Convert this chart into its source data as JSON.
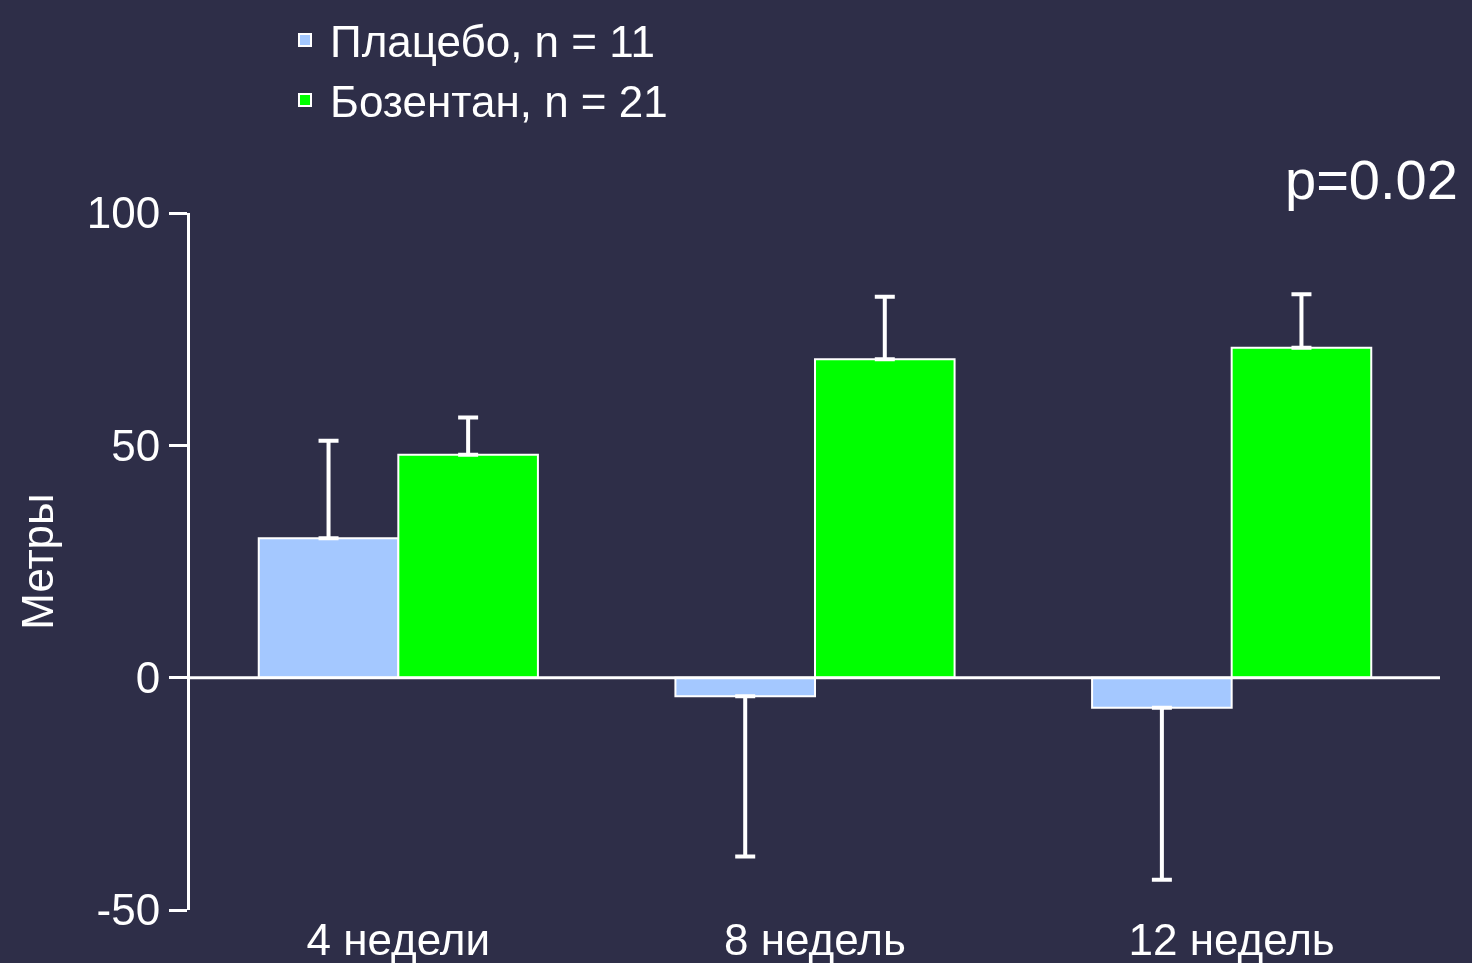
{
  "chart_data": {
    "type": "bar",
    "categories": [
      "4 недели",
      "8 недель",
      "12 недель"
    ],
    "series": [
      {
        "name": "Плацебо, n = 11",
        "color": "#a4c8ff",
        "values": [
          30,
          -4,
          -6.5
        ],
        "errors": [
          [
            30,
            51
          ],
          [
            -38.5,
            -4
          ],
          [
            -43.5,
            -6.5
          ]
        ]
      },
      {
        "name": "Бозентан, n = 21",
        "color": "#00ff00",
        "values": [
          48,
          68.5,
          71
        ],
        "errors": [
          [
            48,
            56
          ],
          [
            68.5,
            82
          ],
          [
            71,
            82.5
          ]
        ]
      }
    ],
    "ylabel": "Метры",
    "ylim": [
      -50,
      100
    ],
    "yticks": [
      -50,
      0,
      50,
      100
    ],
    "legend": "top left",
    "annotations": [
      "p=0.02"
    ],
    "ref_lines": [
      {
        "axis": "y",
        "value": 0,
        "color": "#ffffff"
      }
    ]
  }
}
